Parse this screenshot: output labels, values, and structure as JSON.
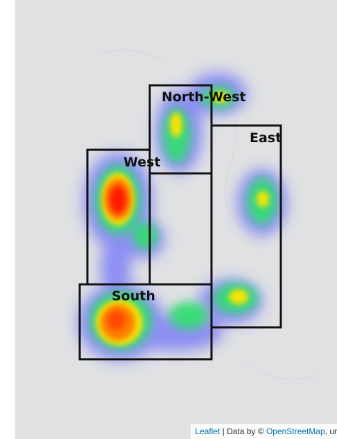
{
  "map": {
    "regions": [
      {
        "id": "north-west",
        "label": "North-West"
      },
      {
        "id": "east",
        "label": "East"
      },
      {
        "id": "west",
        "label": "West"
      },
      {
        "id": "south",
        "label": "South"
      }
    ],
    "heatmap_colors": {
      "low": "#3b3bff",
      "mid": "#00e676",
      "high": "#ffeb00",
      "peak": "#ff0000"
    },
    "background_color": "#dfe1e3"
  },
  "attribution": {
    "leaflet": "Leaflet",
    "separator": " | Data by © ",
    "osm": "OpenStreetMap",
    "suffix": ", ur"
  }
}
